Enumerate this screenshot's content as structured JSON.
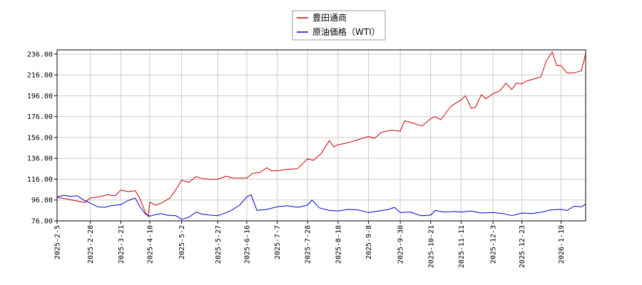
{
  "chart_data": {
    "type": "line",
    "grid": true,
    "legend_position": "top-center",
    "ylim": [
      76.0,
      240.0
    ],
    "yticks": [
      "76.00",
      "96.00",
      "116.00",
      "136.00",
      "156.00",
      "176.00",
      "196.00",
      "216.00",
      "236.00"
    ],
    "xticks": [
      "2025-2-5",
      "2025-2-28",
      "2025-3-21",
      "2025-4-10",
      "2025-5-2",
      "2025-5-27",
      "2025-6-16",
      "2025-7-7",
      "2025-7-28",
      "2025-8-18",
      "2025-9-8",
      "2025-9-30",
      "2025-10-21",
      "2025-11-11",
      "2025-12-3",
      "2025-12-23",
      "2026-1-19"
    ],
    "x_end": "2026-2-5",
    "series": [
      {
        "name": "豊田通商",
        "color": "#cc0000",
        "points": [
          [
            "2025-2-5",
            98.5
          ],
          [
            "2025-2-12",
            97.0
          ],
          [
            "2025-2-19",
            95.0
          ],
          [
            "2025-2-24",
            93.5
          ],
          [
            "2025-2-28",
            98.0
          ],
          [
            "2025-3-7",
            99.5
          ],
          [
            "2025-3-12",
            101.0
          ],
          [
            "2025-3-17",
            100.0
          ],
          [
            "2025-3-21",
            105.5
          ],
          [
            "2025-3-26",
            104.0
          ],
          [
            "2025-3-31",
            105.0
          ],
          [
            "2025-4-3",
            98.0
          ],
          [
            "2025-4-7",
            84.0
          ],
          [
            "2025-4-9",
            80.0
          ],
          [
            "2025-4-10",
            94.0
          ],
          [
            "2025-4-14",
            91.0
          ],
          [
            "2025-4-18",
            93.0
          ],
          [
            "2025-4-24",
            98.0
          ],
          [
            "2025-4-28",
            106.0
          ],
          [
            "2025-5-2",
            115.0
          ],
          [
            "2025-5-7",
            113.0
          ],
          [
            "2025-5-12",
            118.5
          ],
          [
            "2025-5-16",
            116.5
          ],
          [
            "2025-5-22",
            116.0
          ],
          [
            "2025-5-27",
            116.0
          ],
          [
            "2025-6-2",
            119.0
          ],
          [
            "2025-6-6",
            117.0
          ],
          [
            "2025-6-11",
            117.0
          ],
          [
            "2025-6-16",
            117.0
          ],
          [
            "2025-6-20",
            121.5
          ],
          [
            "2025-6-25",
            122.5
          ],
          [
            "2025-6-30",
            127.0
          ],
          [
            "2025-7-3",
            124.0
          ],
          [
            "2025-7-7",
            124.0
          ],
          [
            "2025-7-14",
            125.5
          ],
          [
            "2025-7-21",
            126.0
          ],
          [
            "2025-7-28",
            135.5
          ],
          [
            "2025-8-1",
            134.0
          ],
          [
            "2025-8-6",
            140.0
          ],
          [
            "2025-8-12",
            153.0
          ],
          [
            "2025-8-15",
            147.0
          ],
          [
            "2025-8-18",
            149.0
          ],
          [
            "2025-8-25",
            151.0
          ],
          [
            "2025-9-1",
            154.0
          ],
          [
            "2025-9-8",
            157.0
          ],
          [
            "2025-9-12",
            155.0
          ],
          [
            "2025-9-17",
            161.0
          ],
          [
            "2025-9-24",
            163.0
          ],
          [
            "2025-9-30",
            162.0
          ],
          [
            "2025-10-3",
            172.0
          ],
          [
            "2025-10-8",
            170.0
          ],
          [
            "2025-10-15",
            167.0
          ],
          [
            "2025-10-21",
            174.0
          ],
          [
            "2025-10-24",
            176.0
          ],
          [
            "2025-10-28",
            173.0
          ],
          [
            "2025-11-4",
            186.0
          ],
          [
            "2025-11-11",
            192.0
          ],
          [
            "2025-11-14",
            196.0
          ],
          [
            "2025-11-18",
            184.0
          ],
          [
            "2025-11-21",
            185.0
          ],
          [
            "2025-11-25",
            197.0
          ],
          [
            "2025-11-28",
            193.0
          ],
          [
            "2025-12-3",
            198.0
          ],
          [
            "2025-12-8",
            201.0
          ],
          [
            "2025-12-12",
            208.0
          ],
          [
            "2025-12-16",
            202.0
          ],
          [
            "2025-12-19",
            208.0
          ],
          [
            "2025-12-23",
            207.5
          ],
          [
            "2025-12-26",
            210.0
          ],
          [
            "2026-1-5",
            214.0
          ],
          [
            "2026-1-9",
            230.0
          ],
          [
            "2026-1-13",
            238.0
          ],
          [
            "2026-1-16",
            225.0
          ],
          [
            "2026-1-19",
            225.0
          ],
          [
            "2026-1-23",
            218.0
          ],
          [
            "2026-1-28",
            218.0
          ],
          [
            "2026-2-2",
            220.0
          ],
          [
            "2026-2-5",
            236.0
          ]
        ]
      },
      {
        "name": "原油価格（WTI）",
        "color": "#0000cc",
        "points": [
          [
            "2025-2-5",
            99.0
          ],
          [
            "2025-2-10",
            100.5
          ],
          [
            "2025-2-14",
            99.5
          ],
          [
            "2025-2-19",
            100.0
          ],
          [
            "2025-2-24",
            95.5
          ],
          [
            "2025-2-28",
            93.0
          ],
          [
            "2025-3-5",
            89.5
          ],
          [
            "2025-3-10",
            89.0
          ],
          [
            "2025-3-14",
            90.5
          ],
          [
            "2025-3-21",
            91.5
          ],
          [
            "2025-3-26",
            95.5
          ],
          [
            "2025-3-31",
            98.0
          ],
          [
            "2025-4-3",
            90.0
          ],
          [
            "2025-4-7",
            82.5
          ],
          [
            "2025-4-10",
            80.5
          ],
          [
            "2025-4-14",
            82.0
          ],
          [
            "2025-4-18",
            83.0
          ],
          [
            "2025-4-22",
            81.5
          ],
          [
            "2025-4-28",
            81.0
          ],
          [
            "2025-5-2",
            77.5
          ],
          [
            "2025-5-7",
            79.5
          ],
          [
            "2025-5-12",
            84.5
          ],
          [
            "2025-5-16",
            82.5
          ],
          [
            "2025-5-22",
            81.5
          ],
          [
            "2025-5-27",
            81.0
          ],
          [
            "2025-6-2",
            84.0
          ],
          [
            "2025-6-6",
            86.5
          ],
          [
            "2025-6-11",
            91.0
          ],
          [
            "2025-6-16",
            99.0
          ],
          [
            "2025-6-19",
            101.0
          ],
          [
            "2025-6-23",
            86.0
          ],
          [
            "2025-6-30",
            87.0
          ],
          [
            "2025-7-7",
            89.5
          ],
          [
            "2025-7-14",
            90.5
          ],
          [
            "2025-7-21",
            89.0
          ],
          [
            "2025-7-28",
            91.0
          ],
          [
            "2025-7-31",
            96.0
          ],
          [
            "2025-8-5",
            88.5
          ],
          [
            "2025-8-12",
            86.0
          ],
          [
            "2025-8-18",
            85.5
          ],
          [
            "2025-8-25",
            87.0
          ],
          [
            "2025-9-1",
            86.5
          ],
          [
            "2025-9-8",
            84.0
          ],
          [
            "2025-9-15",
            85.5
          ],
          [
            "2025-9-22",
            87.0
          ],
          [
            "2025-9-26",
            89.0
          ],
          [
            "2025-9-30",
            84.0
          ],
          [
            "2025-10-7",
            84.5
          ],
          [
            "2025-10-14",
            81.0
          ],
          [
            "2025-10-21",
            81.5
          ],
          [
            "2025-10-24",
            86.0
          ],
          [
            "2025-10-30",
            84.5
          ],
          [
            "2025-11-6",
            85.0
          ],
          [
            "2025-11-11",
            84.5
          ],
          [
            "2025-11-18",
            85.5
          ],
          [
            "2025-11-25",
            83.5
          ],
          [
            "2025-12-3",
            84.0
          ],
          [
            "2025-12-10",
            83.0
          ],
          [
            "2025-12-16",
            81.0
          ],
          [
            "2025-12-23",
            83.5
          ],
          [
            "2025-12-30",
            83.0
          ],
          [
            "2026-1-6",
            84.5
          ],
          [
            "2026-1-12",
            86.5
          ],
          [
            "2026-1-19",
            87.0
          ],
          [
            "2026-1-23",
            86.0
          ],
          [
            "2026-1-28",
            90.0
          ],
          [
            "2026-2-2",
            89.5
          ],
          [
            "2026-2-5",
            92.0
          ]
        ]
      }
    ]
  }
}
